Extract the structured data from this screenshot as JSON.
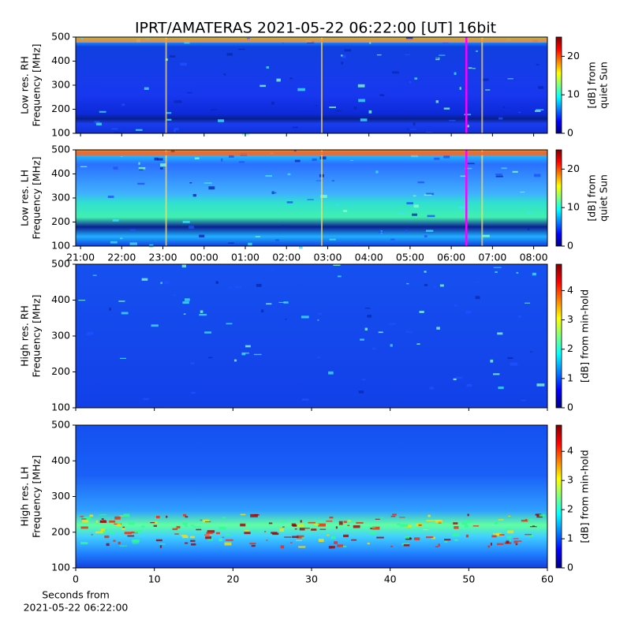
{
  "title": "IPRT/AMATERAS 2021-05-22 06:22:00 [UT]   16bit",
  "chart_data": [
    {
      "type": "heatmap",
      "ylabel": [
        "Low res. RH",
        "Frequency [MHz]"
      ],
      "ylim": [
        100,
        500
      ],
      "yticks": [
        100,
        200,
        300,
        400,
        500
      ],
      "xlim": [
        "20:53",
        "08:20"
      ],
      "marker": "06:22",
      "marker_color": "#ff00ff",
      "colormap": "jet",
      "clim": [
        0,
        25
      ],
      "cticks": [
        0,
        10,
        20
      ],
      "colorbar_label": [
        "[dB] from",
        "quiet Sun"
      ]
    },
    {
      "type": "heatmap",
      "ylabel": [
        "Low res. LH",
        "Frequency [MHz]"
      ],
      "ylim": [
        100,
        500
      ],
      "yticks": [
        100,
        200,
        300,
        400,
        500
      ],
      "xlim": [
        "20:53",
        "08:20"
      ],
      "xticks": [
        "21:00",
        "22:00",
        "23:00",
        "00:00",
        "01:00",
        "02:00",
        "03:00",
        "04:00",
        "05:00",
        "06:00",
        "07:00",
        "08:00"
      ],
      "marker": "06:22",
      "marker_color": "#ff00ff",
      "colormap": "jet",
      "clim": [
        0,
        25
      ],
      "cticks": [
        0,
        10,
        20
      ],
      "colorbar_label": [
        "[dB] from",
        "quiet Sun"
      ]
    },
    {
      "type": "heatmap",
      "ylabel": [
        "High res. RH",
        "Frequency [MHz]"
      ],
      "ylim": [
        100,
        500
      ],
      "yticks": [
        100,
        200,
        300,
        400,
        500
      ],
      "xlim": [
        0,
        60
      ],
      "colormap": "jet",
      "clim": [
        0,
        4.9
      ],
      "cticks": [
        0,
        1,
        2,
        3,
        4
      ],
      "colorbar_label": [
        "[dB] from min-hold"
      ]
    },
    {
      "type": "heatmap",
      "ylabel": [
        "High res. LH",
        "Frequency [MHz]"
      ],
      "ylim": [
        100,
        500
      ],
      "yticks": [
        100,
        200,
        300,
        400,
        500
      ],
      "xlim": [
        0,
        60
      ],
      "xticks": [
        0,
        10,
        20,
        30,
        40,
        50,
        60
      ],
      "xlabel": [
        "Seconds from",
        "2021-05-22 06:22:00"
      ],
      "colormap": "jet",
      "clim": [
        0,
        4.9
      ],
      "cticks": [
        0,
        1,
        2,
        3,
        4
      ],
      "colorbar_label": [
        "[dB] from min-hold"
      ]
    }
  ]
}
